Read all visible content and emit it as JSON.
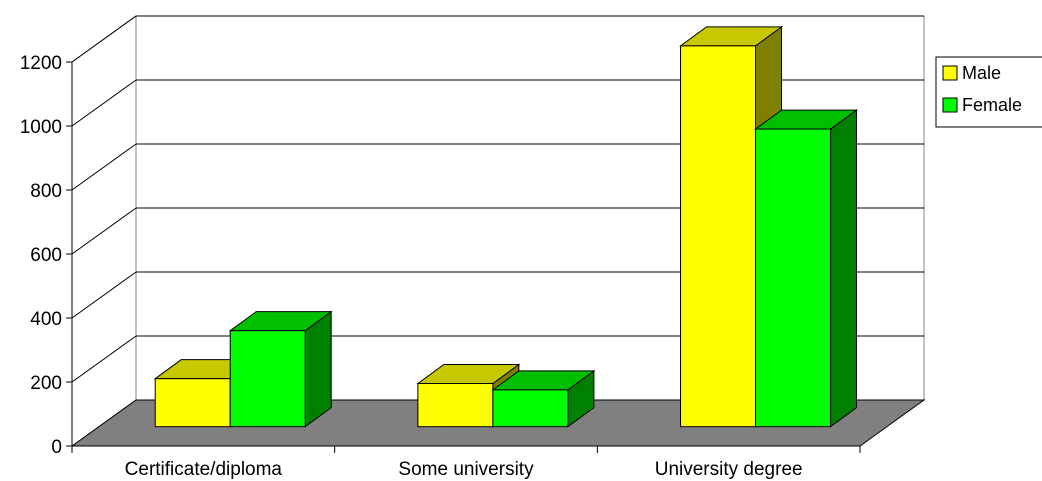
{
  "chart_data": {
    "type": "bar",
    "categories": [
      "Certificate/diploma",
      "Some university",
      "University degree"
    ],
    "series": [
      {
        "name": "Male",
        "values": [
          150,
          135,
          1190
        ],
        "color": "#ffff00",
        "top_color": "#c8c800",
        "side_color": "#808000"
      },
      {
        "name": "Female",
        "values": [
          300,
          115,
          930
        ],
        "color": "#00ff00",
        "top_color": "#00c000",
        "side_color": "#008000"
      }
    ],
    "ylim": [
      0,
      1200
    ],
    "yticks": [
      "0",
      "200",
      "400",
      "600",
      "800",
      "1000",
      "1200"
    ],
    "grid": true,
    "legend_position": "right",
    "floor_color": "#808080"
  }
}
